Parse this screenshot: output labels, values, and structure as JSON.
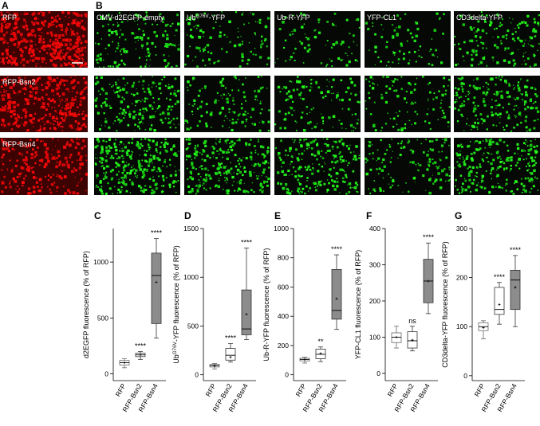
{
  "panel_a": {
    "label": "A",
    "rows": [
      "RFP",
      "RFP-Bsn2",
      "RFP-Bsn4"
    ]
  },
  "panel_b": {
    "label": "B",
    "columns": [
      "CMV-d2EGFP-empty",
      {
        "base": "Ub",
        "sup": "G76V",
        "rest": "-YFP"
      },
      "Ub-R-YFP",
      "YFP-CL1",
      "CD3delta-YFP"
    ]
  },
  "chart_data": [
    {
      "type": "box",
      "panel": "C",
      "y_label": {
        "base": "d2EGFP fluorescence (% of RFP)"
      },
      "categories": [
        "RFP",
        "RFP-Bsn2",
        "RFP-Bsn4"
      ],
      "colors": [
        "#ffffff",
        "#ffffff",
        "#8c8c8c"
      ],
      "boxes": [
        {
          "whisker_low": 55,
          "q1": 80,
          "median": 100,
          "q3": 120,
          "whisker_high": 135,
          "mean": 100
        },
        {
          "whisker_low": 130,
          "q1": 155,
          "median": 170,
          "q3": 185,
          "whisker_high": 200,
          "mean": 170
        },
        {
          "whisker_low": 320,
          "q1": 450,
          "median": 880,
          "q3": 1080,
          "whisker_high": 1210,
          "mean": 820
        }
      ],
      "annotations": [
        null,
        "****",
        "****"
      ],
      "ylim": [
        -60,
        1300
      ],
      "yticks": [
        0,
        500,
        1000
      ]
    },
    {
      "type": "box",
      "panel": "D",
      "y_label": {
        "base": "Ub",
        "sup": "G76V",
        "rest": "-YFP fluorescence (% of RFP)"
      },
      "categories": [
        "RFP",
        "RFP-Bsn2",
        "RFP-Bsn4"
      ],
      "colors": [
        "#ffffff",
        "#ffffff",
        "#8c8c8c"
      ],
      "boxes": [
        {
          "whisker_low": 60,
          "q1": 80,
          "median": 95,
          "q3": 105,
          "whisker_high": 115,
          "mean": 90
        },
        {
          "whisker_low": 130,
          "q1": 150,
          "median": 200,
          "q3": 270,
          "whisker_high": 320,
          "mean": 180
        },
        {
          "whisker_low": 360,
          "q1": 410,
          "median": 470,
          "q3": 870,
          "whisker_high": 1300,
          "mean": 620
        }
      ],
      "annotations": [
        null,
        "****",
        "****"
      ],
      "ylim": [
        -60,
        1500
      ],
      "yticks": [
        0,
        500,
        1000,
        1500
      ]
    },
    {
      "type": "box",
      "panel": "E",
      "y_label": {
        "base": "Ub-R-YFP fluorescence (% of RFP)"
      },
      "categories": [
        "RFP",
        "RFP-Bsn2",
        "RFP-Bsn4"
      ],
      "colors": [
        "#ffffff",
        "#ffffff",
        "#8c8c8c"
      ],
      "boxes": [
        {
          "whisker_low": 80,
          "q1": 95,
          "median": 105,
          "q3": 113,
          "whisker_high": 120,
          "mean": 105
        },
        {
          "whisker_low": 90,
          "q1": 110,
          "median": 140,
          "q3": 175,
          "whisker_high": 190,
          "mean": 145
        },
        {
          "whisker_low": 310,
          "q1": 380,
          "median": 440,
          "q3": 720,
          "whisker_high": 820,
          "mean": 520
        }
      ],
      "annotations": [
        null,
        "**",
        "****"
      ],
      "ylim": [
        -40,
        1000
      ],
      "yticks": [
        0,
        200,
        400,
        600,
        800,
        1000
      ]
    },
    {
      "type": "box",
      "panel": "F",
      "y_label": {
        "base": "YFP-CL1 fluorescence (% of RFP)"
      },
      "categories": [
        "RFP",
        "RFP-Bsn2",
        "RFP-Bsn4"
      ],
      "colors": [
        "#ffffff",
        "#ffffff",
        "#8c8c8c"
      ],
      "boxes": [
        {
          "whisker_low": 70,
          "q1": 85,
          "median": 100,
          "q3": 112,
          "whisker_high": 130,
          "mean": 100
        },
        {
          "whisker_low": 62,
          "q1": 70,
          "median": 90,
          "q3": 115,
          "whisker_high": 130,
          "mean": 92
        },
        {
          "whisker_low": 165,
          "q1": 195,
          "median": 255,
          "q3": 315,
          "whisker_high": 360,
          "mean": 255
        }
      ],
      "annotations": [
        null,
        "ns",
        "****"
      ],
      "ylim": [
        -20,
        400
      ],
      "yticks": [
        0,
        100,
        200,
        300,
        400
      ]
    },
    {
      "type": "box",
      "panel": "G",
      "y_label": {
        "base": "CD3delta-YFP fluorescence (% of RFP)"
      },
      "categories": [
        "RFP",
        "RFP-Bsn2",
        "RFP-Bsn4"
      ],
      "colors": [
        "#ffffff",
        "#ffffff",
        "#8c8c8c"
      ],
      "boxes": [
        {
          "whisker_low": 75,
          "q1": 92,
          "median": 100,
          "q3": 108,
          "whisker_high": 112,
          "mean": 98
        },
        {
          "whisker_low": 105,
          "q1": 125,
          "median": 135,
          "q3": 180,
          "whisker_high": 190,
          "mean": 145
        },
        {
          "whisker_low": 100,
          "q1": 135,
          "median": 195,
          "q3": 215,
          "whisker_high": 245,
          "mean": 180
        }
      ],
      "annotations": [
        null,
        "****",
        "****"
      ],
      "ylim": [
        -10,
        300
      ],
      "yticks": [
        0,
        100,
        200,
        300
      ]
    }
  ]
}
